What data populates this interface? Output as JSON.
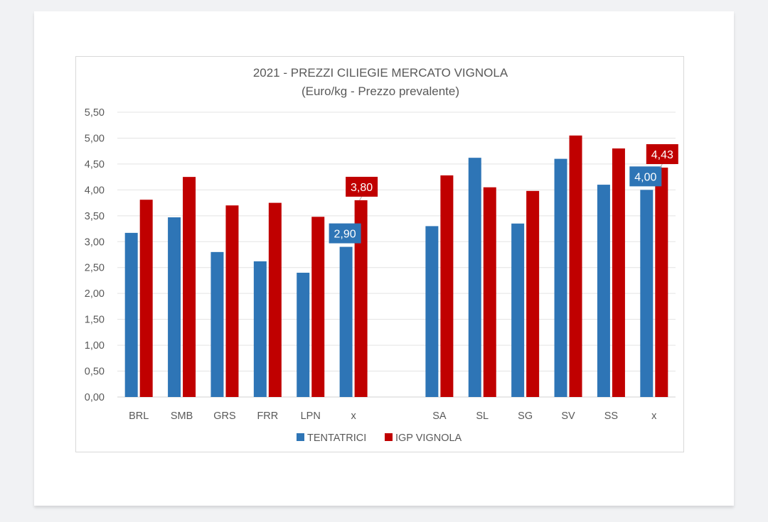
{
  "chart_data": {
    "type": "bar",
    "title": "2021 - PREZZI CILIEGIE MERCATO VIGNOLA",
    "subtitle": "(Euro/kg - Prezzo prevalente)",
    "xlabel": "",
    "ylabel": "",
    "ylim": [
      0,
      5.5
    ],
    "yticks": [
      0,
      0.5,
      1,
      1.5,
      2,
      2.5,
      3,
      3.5,
      4,
      4.5,
      5,
      5.5
    ],
    "ytick_labels": [
      "0,00",
      "0,50",
      "1,00",
      "1,50",
      "2,00",
      "2,50",
      "3,00",
      "3,50",
      "4,00",
      "4,50",
      "5,00",
      "5,50"
    ],
    "grid": true,
    "legend_position": "bottom",
    "categories": [
      "BRL",
      "SMB",
      "GRS",
      "FRR",
      "LPN",
      "x",
      "",
      "SA",
      "SL",
      "SG",
      "SV",
      "SS",
      "x"
    ],
    "series": [
      {
        "name": "TENTATRICI",
        "color": "#2E75B6",
        "values": [
          3.17,
          3.47,
          2.8,
          2.62,
          2.4,
          2.9,
          null,
          3.3,
          4.62,
          3.35,
          4.6,
          4.1,
          4.0
        ]
      },
      {
        "name": "IGP VIGNOLA",
        "color": "#C00000",
        "values": [
          3.81,
          4.25,
          3.7,
          3.75,
          3.48,
          3.8,
          null,
          4.28,
          4.05,
          3.98,
          5.05,
          4.8,
          4.43
        ]
      }
    ],
    "data_labels": [
      {
        "series": 0,
        "category_index": 5,
        "text": "2,90"
      },
      {
        "series": 1,
        "category_index": 5,
        "text": "3,80"
      },
      {
        "series": 0,
        "category_index": 12,
        "text": "4,00"
      },
      {
        "series": 1,
        "category_index": 12,
        "text": "4,43"
      }
    ]
  }
}
